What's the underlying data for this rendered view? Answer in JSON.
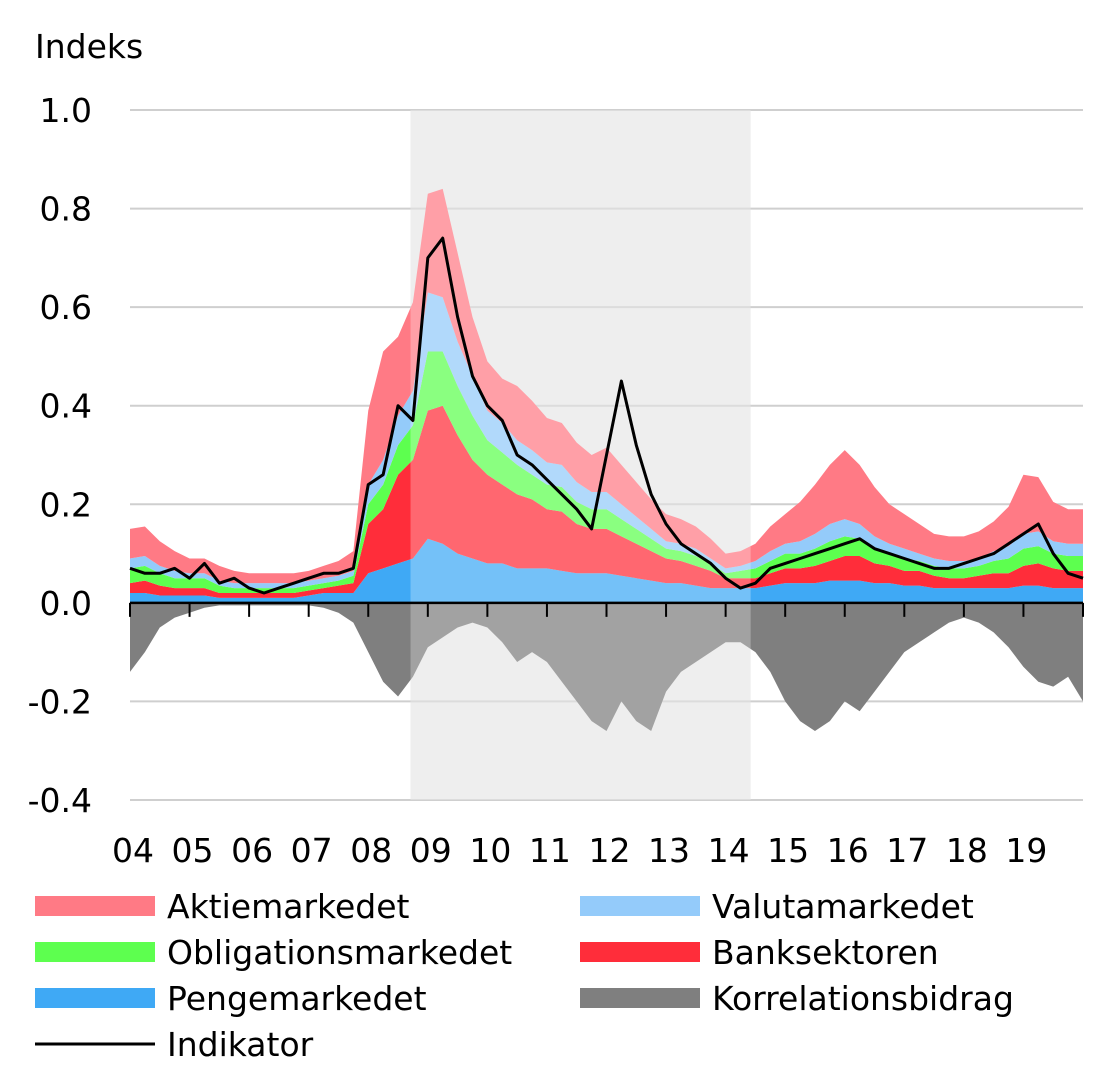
{
  "chart_data": {
    "type": "area",
    "ylabel": "Indeks",
    "ylim": [
      -0.4,
      1.0
    ],
    "yticks": [
      1.0,
      0.8,
      0.6,
      0.4,
      0.2,
      0.0,
      -0.2,
      -0.4
    ],
    "ytick_labels": [
      "1.0",
      "0.8",
      "0.6",
      "0.4",
      "0.2",
      "0.0",
      "-0.2",
      "-0.4"
    ],
    "xlim": [
      2004.0,
      2020.0
    ],
    "xtick_labels": [
      "04",
      "05",
      "06",
      "07",
      "08",
      "09",
      "10",
      "11",
      "12",
      "13",
      "14",
      "15",
      "16",
      "17",
      "18",
      "19"
    ],
    "grid": true,
    "legend_position": "bottom",
    "shaded_period": {
      "start": 2008.71,
      "end": 2014.42,
      "color": "#e8e8e8"
    },
    "x": [
      2004.0,
      2004.25,
      2004.5,
      2004.75,
      2005.0,
      2005.25,
      2005.5,
      2005.75,
      2006.0,
      2006.25,
      2006.5,
      2006.75,
      2007.0,
      2007.25,
      2007.5,
      2007.75,
      2008.0,
      2008.25,
      2008.5,
      2008.75,
      2009.0,
      2009.25,
      2009.5,
      2009.75,
      2010.0,
      2010.25,
      2010.5,
      2010.75,
      2011.0,
      2011.25,
      2011.5,
      2011.75,
      2012.0,
      2012.25,
      2012.5,
      2012.75,
      2013.0,
      2013.25,
      2013.5,
      2013.75,
      2014.0,
      2014.25,
      2014.5,
      2014.75,
      2015.0,
      2015.25,
      2015.5,
      2015.75,
      2016.0,
      2016.25,
      2016.5,
      2016.75,
      2017.0,
      2017.25,
      2017.5,
      2017.75,
      2018.0,
      2018.25,
      2018.5,
      2018.75,
      2019.0,
      2019.25,
      2019.5,
      2019.75,
      2020.0
    ],
    "series": [
      {
        "name": "Pengemarkedet",
        "color": "#3fa9f5",
        "values": [
          0.02,
          0.02,
          0.015,
          0.015,
          0.015,
          0.015,
          0.01,
          0.01,
          0.01,
          0.01,
          0.01,
          0.01,
          0.015,
          0.02,
          0.02,
          0.02,
          0.06,
          0.07,
          0.08,
          0.09,
          0.13,
          0.12,
          0.1,
          0.09,
          0.08,
          0.08,
          0.07,
          0.07,
          0.07,
          0.065,
          0.06,
          0.06,
          0.06,
          0.055,
          0.05,
          0.045,
          0.04,
          0.04,
          0.035,
          0.03,
          0.03,
          0.03,
          0.03,
          0.035,
          0.04,
          0.04,
          0.04,
          0.045,
          0.045,
          0.045,
          0.04,
          0.04,
          0.035,
          0.035,
          0.03,
          0.03,
          0.03,
          0.03,
          0.03,
          0.03,
          0.035,
          0.035,
          0.03,
          0.03,
          0.03
        ]
      },
      {
        "name": "Banksektoren",
        "color": "#ff2d3a",
        "values": [
          0.02,
          0.025,
          0.02,
          0.015,
          0.015,
          0.015,
          0.01,
          0.01,
          0.01,
          0.01,
          0.01,
          0.01,
          0.01,
          0.01,
          0.015,
          0.02,
          0.1,
          0.12,
          0.18,
          0.2,
          0.26,
          0.28,
          0.24,
          0.2,
          0.18,
          0.16,
          0.15,
          0.14,
          0.12,
          0.12,
          0.1,
          0.09,
          0.09,
          0.08,
          0.07,
          0.06,
          0.05,
          0.045,
          0.04,
          0.035,
          0.02,
          0.02,
          0.02,
          0.025,
          0.03,
          0.03,
          0.035,
          0.04,
          0.05,
          0.05,
          0.04,
          0.035,
          0.03,
          0.03,
          0.025,
          0.02,
          0.02,
          0.025,
          0.03,
          0.03,
          0.04,
          0.045,
          0.04,
          0.035,
          0.035
        ]
      },
      {
        "name": "Obligationsmarkedet",
        "color": "#5dff4f",
        "values": [
          0.03,
          0.03,
          0.025,
          0.02,
          0.02,
          0.02,
          0.015,
          0.01,
          0.01,
          0.01,
          0.01,
          0.01,
          0.01,
          0.01,
          0.01,
          0.015,
          0.04,
          0.05,
          0.06,
          0.07,
          0.12,
          0.11,
          0.1,
          0.09,
          0.07,
          0.065,
          0.06,
          0.05,
          0.05,
          0.05,
          0.045,
          0.04,
          0.04,
          0.035,
          0.03,
          0.025,
          0.02,
          0.02,
          0.02,
          0.015,
          0.01,
          0.015,
          0.02,
          0.025,
          0.03,
          0.03,
          0.035,
          0.04,
          0.04,
          0.035,
          0.03,
          0.025,
          0.025,
          0.02,
          0.02,
          0.02,
          0.02,
          0.02,
          0.025,
          0.03,
          0.035,
          0.035,
          0.03,
          0.03,
          0.03
        ]
      },
      {
        "name": "Valutamarkedet",
        "color": "#94cbfa",
        "values": [
          0.02,
          0.02,
          0.015,
          0.015,
          0.01,
          0.01,
          0.01,
          0.01,
          0.01,
          0.01,
          0.01,
          0.01,
          0.01,
          0.01,
          0.01,
          0.01,
          0.04,
          0.05,
          0.06,
          0.07,
          0.12,
          0.11,
          0.09,
          0.08,
          0.06,
          0.06,
          0.05,
          0.05,
          0.045,
          0.045,
          0.04,
          0.035,
          0.035,
          0.03,
          0.025,
          0.02,
          0.015,
          0.015,
          0.015,
          0.01,
          0.01,
          0.01,
          0.015,
          0.02,
          0.02,
          0.025,
          0.03,
          0.035,
          0.035,
          0.03,
          0.025,
          0.02,
          0.02,
          0.015,
          0.015,
          0.015,
          0.015,
          0.015,
          0.02,
          0.025,
          0.03,
          0.03,
          0.025,
          0.025,
          0.025
        ]
      },
      {
        "name": "Aktiemarkedet",
        "color": "#ff7a85",
        "values": [
          0.06,
          0.06,
          0.05,
          0.04,
          0.03,
          0.03,
          0.03,
          0.025,
          0.02,
          0.02,
          0.02,
          0.02,
          0.02,
          0.025,
          0.03,
          0.04,
          0.15,
          0.22,
          0.16,
          0.18,
          0.2,
          0.22,
          0.18,
          0.12,
          0.1,
          0.09,
          0.11,
          0.1,
          0.09,
          0.085,
          0.08,
          0.075,
          0.09,
          0.08,
          0.07,
          0.06,
          0.055,
          0.05,
          0.045,
          0.04,
          0.03,
          0.03,
          0.035,
          0.05,
          0.06,
          0.08,
          0.1,
          0.12,
          0.14,
          0.12,
          0.1,
          0.08,
          0.07,
          0.06,
          0.05,
          0.05,
          0.05,
          0.055,
          0.06,
          0.08,
          0.12,
          0.11,
          0.08,
          0.07,
          0.07
        ]
      },
      {
        "name": "Korrelationsbidrag",
        "color": "#7f7f7f",
        "values": [
          -0.14,
          -0.1,
          -0.05,
          -0.03,
          -0.02,
          -0.01,
          -0.005,
          -0.005,
          -0.005,
          -0.005,
          -0.005,
          -0.005,
          -0.005,
          -0.01,
          -0.02,
          -0.04,
          -0.1,
          -0.16,
          -0.19,
          -0.15,
          -0.09,
          -0.07,
          -0.05,
          -0.04,
          -0.05,
          -0.08,
          -0.12,
          -0.1,
          -0.12,
          -0.16,
          -0.2,
          -0.24,
          -0.26,
          -0.2,
          -0.24,
          -0.26,
          -0.18,
          -0.14,
          -0.12,
          -0.1,
          -0.08,
          -0.08,
          -0.1,
          -0.14,
          -0.2,
          -0.24,
          -0.26,
          -0.24,
          -0.2,
          -0.22,
          -0.18,
          -0.14,
          -0.1,
          -0.08,
          -0.06,
          -0.04,
          -0.03,
          -0.04,
          -0.06,
          -0.09,
          -0.13,
          -0.16,
          -0.17,
          -0.15,
          -0.2
        ]
      },
      {
        "name": "Indikator",
        "color": "#000000",
        "kind": "line",
        "values": [
          0.07,
          0.06,
          0.06,
          0.07,
          0.05,
          0.08,
          0.04,
          0.05,
          0.03,
          0.02,
          0.03,
          0.04,
          0.05,
          0.06,
          0.06,
          0.07,
          0.24,
          0.26,
          0.4,
          0.37,
          0.7,
          0.74,
          0.58,
          0.46,
          0.4,
          0.37,
          0.3,
          0.28,
          0.25,
          0.22,
          0.19,
          0.15,
          0.3,
          0.45,
          0.32,
          0.22,
          0.16,
          0.12,
          0.1,
          0.08,
          0.05,
          0.03,
          0.04,
          0.07,
          0.08,
          0.09,
          0.1,
          0.11,
          0.12,
          0.13,
          0.11,
          0.1,
          0.09,
          0.08,
          0.07,
          0.07,
          0.08,
          0.09,
          0.1,
          0.12,
          0.14,
          0.16,
          0.1,
          0.06,
          0.05
        ]
      }
    ]
  }
}
